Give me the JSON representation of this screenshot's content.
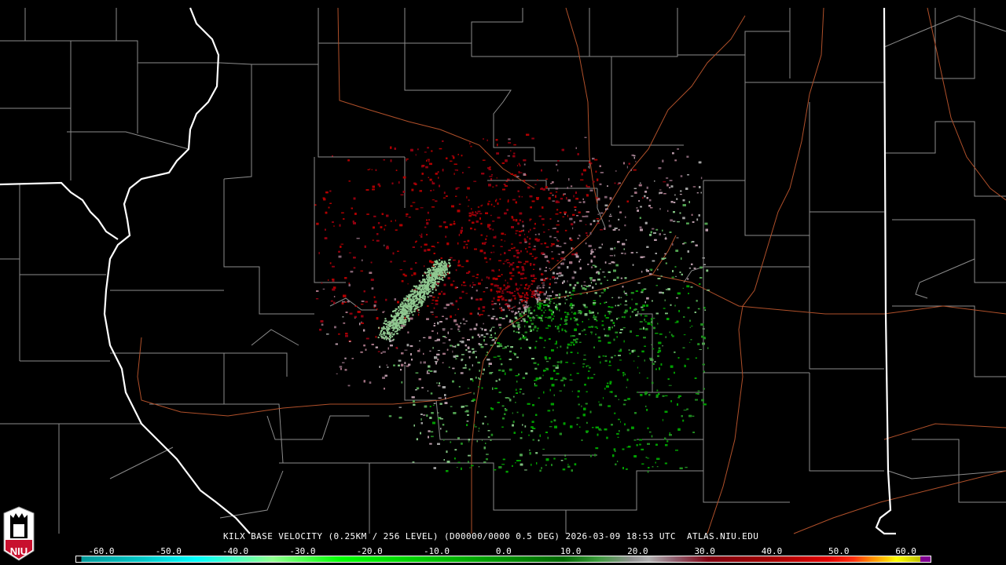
{
  "caption": {
    "station": "KILX",
    "product": "BASE VELOCITY",
    "resolution": "(0.25KM / 256 LEVEL)",
    "volume": "(D00000/0000 0.5 DEG)",
    "datetime": "2026-03-09 18:53 UTC",
    "site": "ATLAS.NIU.EDU"
  },
  "colorbar": {
    "ticks": [
      "-60.0",
      "-50.0",
      "-40.0",
      "-30.0",
      "-20.0",
      "-10.0",
      "0.0",
      "10.0",
      "20.0",
      "30.0",
      "40.0",
      "50.0",
      "60.0"
    ],
    "min": -64,
    "max": 64
  },
  "logo": {
    "text": "NIU",
    "icon": "niu-tower-logo"
  },
  "colors": {
    "state_border": "#ffffff",
    "county_border": "#8c8c8c",
    "highway": "#b0502a",
    "inbound": "#00a000",
    "outbound": "#a00000",
    "near_zero": "#a89098"
  }
}
